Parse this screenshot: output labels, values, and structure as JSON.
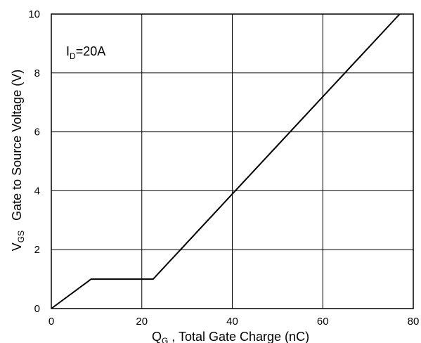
{
  "chart_data": {
    "type": "line",
    "xlabel_main": "Q",
    "xlabel_sub": "G",
    "xlabel_rest": " , Total Gate Charge (nC)",
    "ylabel_main": "V",
    "ylabel_sub": "GS",
    "ylabel_rest": "Gate to Source Voltage (V)",
    "annotation_main": "I",
    "annotation_sub": "D",
    "annotation_rest": "=20A",
    "xlim": [
      0,
      80
    ],
    "ylim": [
      0,
      10
    ],
    "x_ticks": [
      0,
      20,
      40,
      60,
      80
    ],
    "y_ticks": [
      0,
      2,
      4,
      6,
      8,
      10
    ],
    "x_tick_labels": [
      "0",
      "20",
      "40",
      "60",
      "80"
    ],
    "y_tick_labels": [
      "0",
      "2",
      "4",
      "6",
      "8",
      "10"
    ],
    "grid": true,
    "series": [
      {
        "x": [
          0,
          8.8,
          22.5,
          77
        ],
        "y": [
          0,
          1.0,
          1.0,
          10
        ],
        "color": "#000000"
      }
    ]
  }
}
